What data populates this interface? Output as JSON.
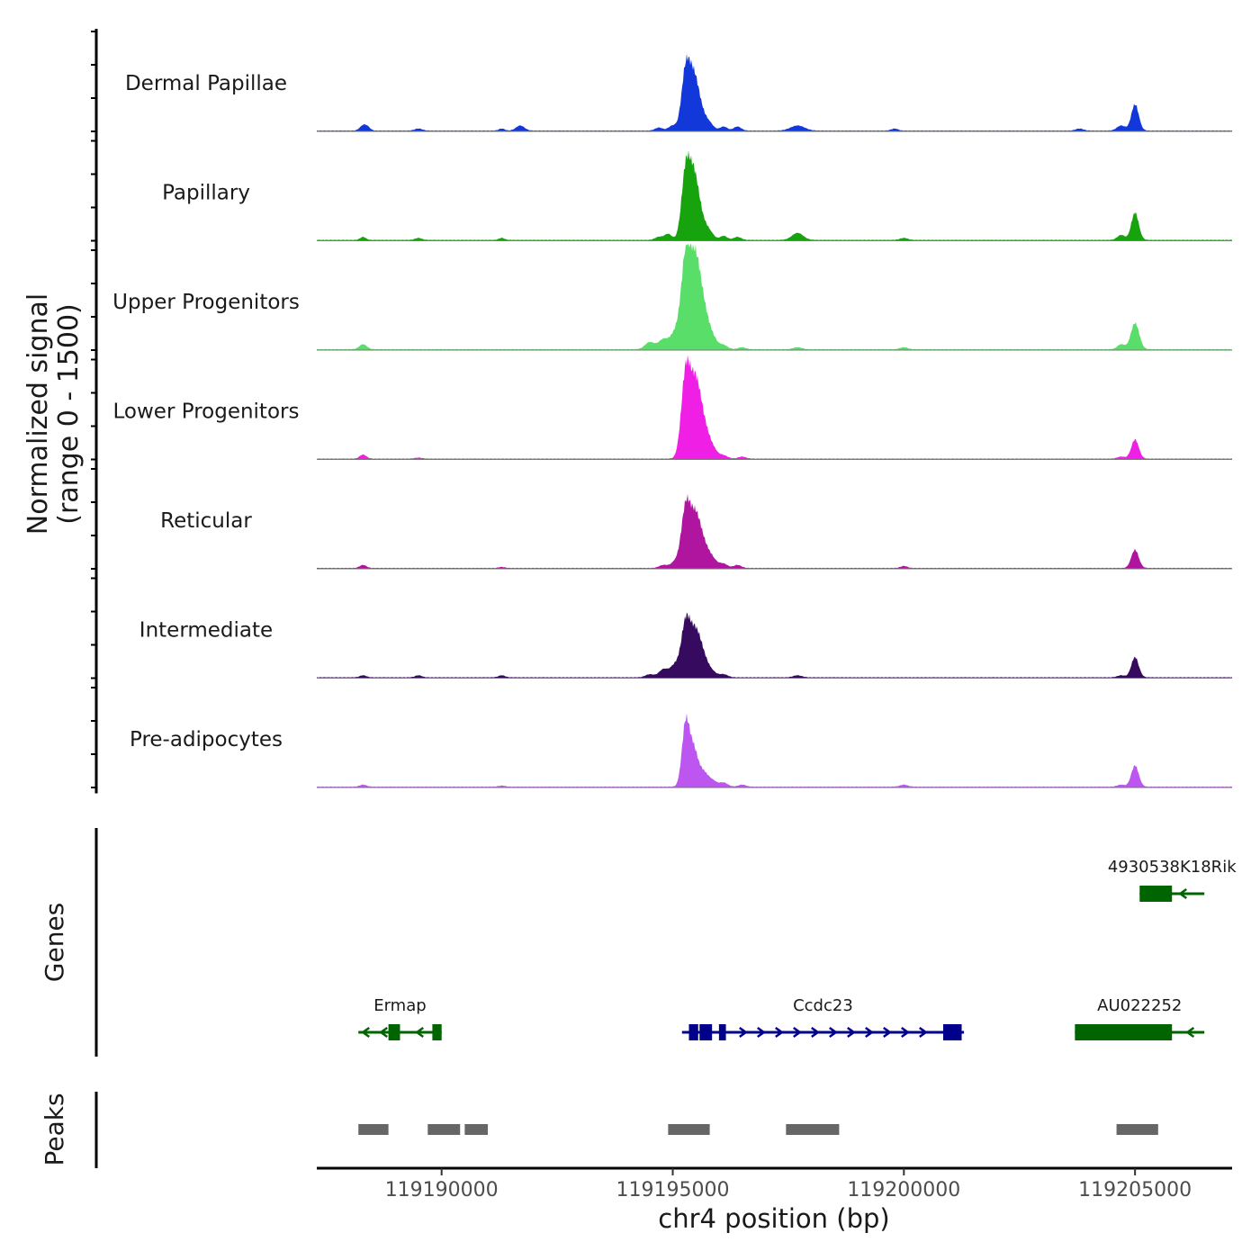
{
  "chart_data": {
    "type": "area",
    "title": "",
    "ylabel_line1": "Normalized signal",
    "ylabel_line2": "(range 0 - 1500)",
    "xlabel": "chr4 position (bp)",
    "chromosome": "chr4",
    "signal_range": [
      0,
      1500
    ],
    "xlim": [
      119187300,
      119207100
    ],
    "x_ticks": [
      119190000,
      119195000,
      119200000,
      119205000
    ],
    "x_tick_labels": [
      "119190000",
      "119195000",
      "119200000",
      "119205000"
    ],
    "tracks": [
      {
        "name": "Dermal Papillae",
        "color": "#1338d9",
        "peaks": [
          [
            119188300,
            0.05,
            70
          ],
          [
            119188400,
            0.03,
            60
          ],
          [
            119189500,
            0.02,
            80
          ],
          [
            119191300,
            0.02,
            60
          ],
          [
            119191700,
            0.05,
            90
          ],
          [
            119194700,
            0.03,
            80
          ],
          [
            119195000,
            0.05,
            90
          ],
          [
            119195280,
            0.58,
            90
          ],
          [
            119195450,
            0.45,
            100
          ],
          [
            119195600,
            0.18,
            110
          ],
          [
            119195800,
            0.06,
            90
          ],
          [
            119196100,
            0.04,
            80
          ],
          [
            119196400,
            0.04,
            80
          ],
          [
            119197700,
            0.05,
            150
          ],
          [
            119199800,
            0.02,
            70
          ],
          [
            119203800,
            0.02,
            80
          ],
          [
            119204700,
            0.05,
            90
          ],
          [
            119205000,
            0.26,
            80
          ]
        ]
      },
      {
        "name": "Papillary",
        "color": "#17a30e",
        "peaks": [
          [
            119188300,
            0.03,
            60
          ],
          [
            119189500,
            0.02,
            70
          ],
          [
            119191300,
            0.02,
            60
          ],
          [
            119194700,
            0.03,
            80
          ],
          [
            119194900,
            0.06,
            80
          ],
          [
            119195280,
            0.66,
            90
          ],
          [
            119195450,
            0.55,
            100
          ],
          [
            119195600,
            0.2,
            110
          ],
          [
            119195800,
            0.07,
            90
          ],
          [
            119196100,
            0.04,
            80
          ],
          [
            119196400,
            0.03,
            80
          ],
          [
            119197700,
            0.07,
            120
          ],
          [
            119200000,
            0.02,
            80
          ],
          [
            119204700,
            0.05,
            80
          ],
          [
            119205000,
            0.27,
            80
          ]
        ]
      },
      {
        "name": "Upper Progenitors",
        "color": "#59de6a",
        "peaks": [
          [
            119188300,
            0.05,
            80
          ],
          [
            119194500,
            0.07,
            100
          ],
          [
            119194800,
            0.1,
            110
          ],
          [
            119195050,
            0.15,
            100
          ],
          [
            119195280,
            0.88,
            100
          ],
          [
            119195480,
            0.75,
            110
          ],
          [
            119195650,
            0.35,
            120
          ],
          [
            119195850,
            0.1,
            110
          ],
          [
            119196100,
            0.04,
            90
          ],
          [
            119196500,
            0.02,
            80
          ],
          [
            119197700,
            0.02,
            90
          ],
          [
            119200000,
            0.02,
            80
          ],
          [
            119204700,
            0.05,
            80
          ],
          [
            119205000,
            0.26,
            90
          ]
        ]
      },
      {
        "name": "Lower Progenitors",
        "color": "#f01fe6",
        "peaks": [
          [
            119188300,
            0.04,
            70
          ],
          [
            119189500,
            0.01,
            80
          ],
          [
            119195280,
            0.82,
            95
          ],
          [
            119195480,
            0.65,
            110
          ],
          [
            119195650,
            0.3,
            120
          ],
          [
            119195850,
            0.09,
            110
          ],
          [
            119196100,
            0.03,
            90
          ],
          [
            119196500,
            0.02,
            80
          ],
          [
            119204700,
            0.02,
            80
          ],
          [
            119205000,
            0.19,
            80
          ]
        ]
      },
      {
        "name": "Reticular",
        "color": "#b0159f",
        "peaks": [
          [
            119188300,
            0.03,
            70
          ],
          [
            119191300,
            0.01,
            60
          ],
          [
            119194800,
            0.03,
            90
          ],
          [
            119195050,
            0.06,
            90
          ],
          [
            119195280,
            0.58,
            95
          ],
          [
            119195480,
            0.45,
            110
          ],
          [
            119195650,
            0.2,
            120
          ],
          [
            119195850,
            0.08,
            110
          ],
          [
            119196100,
            0.04,
            90
          ],
          [
            119196400,
            0.03,
            80
          ],
          [
            119200000,
            0.02,
            70
          ],
          [
            119205000,
            0.18,
            80
          ]
        ]
      },
      {
        "name": "Intermediate",
        "color": "#360a5e",
        "peaks": [
          [
            119188300,
            0.02,
            70
          ],
          [
            119189500,
            0.02,
            70
          ],
          [
            119191300,
            0.02,
            70
          ],
          [
            119194500,
            0.03,
            90
          ],
          [
            119194800,
            0.08,
            100
          ],
          [
            119195050,
            0.12,
            100
          ],
          [
            119195280,
            0.52,
            95
          ],
          [
            119195480,
            0.4,
            110
          ],
          [
            119195650,
            0.18,
            110
          ],
          [
            119195850,
            0.05,
            100
          ],
          [
            119196100,
            0.03,
            90
          ],
          [
            119197700,
            0.02,
            90
          ],
          [
            119204700,
            0.02,
            80
          ],
          [
            119205000,
            0.2,
            80
          ]
        ]
      },
      {
        "name": "Pre-adipocytes",
        "color": "#bd55f0",
        "peaks": [
          [
            119188300,
            0.02,
            70
          ],
          [
            119191300,
            0.01,
            70
          ],
          [
            119195280,
            0.62,
            80
          ],
          [
            119195450,
            0.35,
            90
          ],
          [
            119195650,
            0.14,
            100
          ],
          [
            119195850,
            0.06,
            100
          ],
          [
            119196100,
            0.04,
            90
          ],
          [
            119196500,
            0.02,
            80
          ],
          [
            119200000,
            0.02,
            80
          ],
          [
            119204700,
            0.02,
            80
          ],
          [
            119205000,
            0.21,
            80
          ]
        ]
      }
    ],
    "genes_label": "Genes",
    "genes": [
      {
        "name": "4930538K18Rik",
        "strand": "-",
        "color": "#006400",
        "row": 0,
        "start": 119205100,
        "end": 119206500,
        "exons": [
          [
            119205100,
            119205800
          ]
        ]
      },
      {
        "name": "Ermap",
        "strand": "-",
        "color": "#006400",
        "row": 1,
        "start": 119188200,
        "end": 119190000,
        "exons": [
          [
            119188850,
            119189100
          ],
          [
            119189800,
            119190000
          ]
        ]
      },
      {
        "name": "Ccdc23",
        "strand": "+",
        "color": "#00008b",
        "row": 1,
        "start": 119195200,
        "end": 119201300,
        "exons": [
          [
            119195350,
            119195550
          ],
          [
            119195580,
            119195850
          ],
          [
            119196000,
            119196150
          ],
          [
            119200850,
            119201250
          ]
        ]
      },
      {
        "name": "AU022252",
        "strand": "-",
        "color": "#006400",
        "row": 1,
        "start": 119203700,
        "end": 119206500,
        "exons": [
          [
            119203700,
            119205800
          ]
        ]
      }
    ],
    "peaks_label": "Peaks",
    "peak_regions": [
      [
        119188200,
        119188850
      ],
      [
        119189700,
        119190400
      ],
      [
        119190500,
        119191000
      ],
      [
        119194900,
        119195800
      ],
      [
        119197450,
        119198600
      ],
      [
        119204600,
        119205500
      ]
    ]
  }
}
